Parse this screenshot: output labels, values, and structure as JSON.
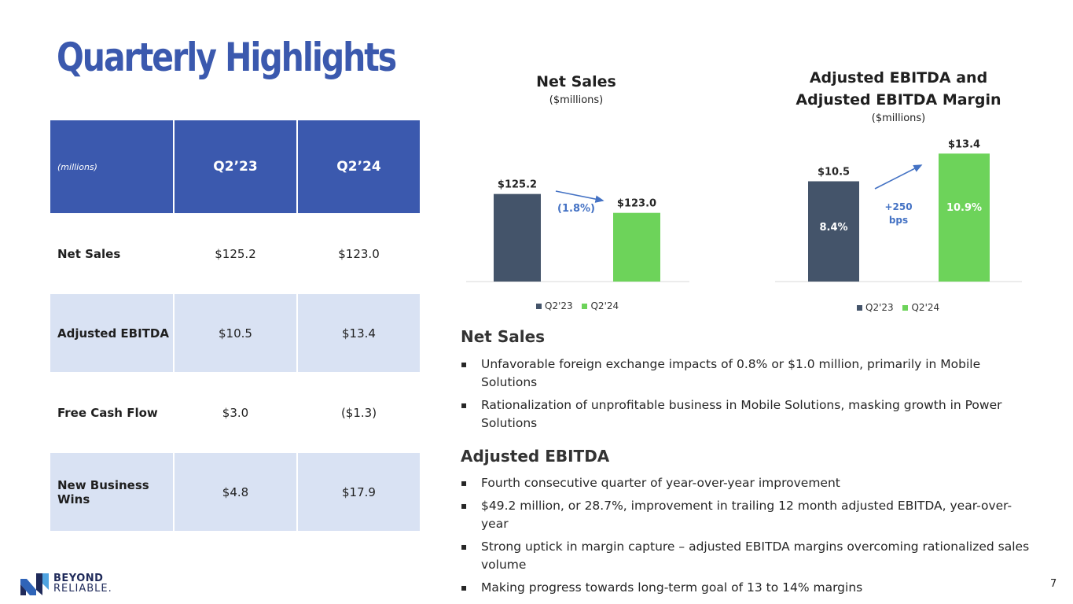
{
  "title": "Quarterly Highlights",
  "table": {
    "header": [
      "(millions)",
      "Q2’23",
      "Q2’24"
    ],
    "rows": [
      [
        "Net Sales",
        "$125.2",
        "$123.0"
      ],
      [
        "Adjusted EBITDA",
        "$10.5",
        "$13.4"
      ],
      [
        "Free Cash Flow",
        "$3.0",
        "($1.3)"
      ],
      [
        "New Business Wins",
        "$4.8",
        "$17.9"
      ]
    ]
  },
  "colors": {
    "brand": "#3b59ae",
    "q2_23": "#44546a",
    "q2_24": "#6dd35a",
    "table_alt": "#d9e2f3",
    "annotation": "#4472c4"
  },
  "chart_data": [
    {
      "type": "bar",
      "title": "Net Sales",
      "subtitle": "($millions)",
      "categories": [
        "Q2'23",
        "Q2'24"
      ],
      "values": [
        125.2,
        123.0
      ],
      "data_labels": [
        "$125.2",
        "$123.0"
      ],
      "annotation": "(1.8%)",
      "legend": [
        "Q2'23",
        "Q2'24"
      ],
      "ylim": [
        115,
        127
      ]
    },
    {
      "type": "bar",
      "title_lines": [
        "Adjusted EBITDA and",
        "Adjusted EBITDA Margin"
      ],
      "subtitle": "($millions)",
      "categories": [
        "Q2'23",
        "Q2'24"
      ],
      "values": [
        10.5,
        13.4
      ],
      "data_labels": [
        "$10.5",
        "$13.4"
      ],
      "margins": [
        "8.4%",
        "10.9%"
      ],
      "annotation_lines": [
        "+250",
        "bps"
      ],
      "legend": [
        "Q2'23",
        "Q2'24"
      ],
      "ylim": [
        0,
        14
      ]
    }
  ],
  "net_sales_section": {
    "heading": "Net Sales",
    "bullets": [
      "Unfavorable foreign exchange impacts of 0.8% or $1.0 million, primarily in Mobile Solutions",
      "Rationalization of unprofitable business in Mobile Solutions, masking growth in Power Solutions"
    ]
  },
  "ebitda_section": {
    "heading": "Adjusted EBITDA",
    "bullets": [
      "Fourth consecutive quarter of year-over-year improvement",
      "$49.2 million, or 28.7%, improvement in trailing 12 month adjusted EBITDA, year-over-year",
      "Strong uptick in margin capture – adjusted EBITDA margins overcoming rationalized sales volume",
      "Making progress towards long-term goal of 13 to 14% margins"
    ]
  },
  "logo": {
    "line1": "BEYOND",
    "line2": "RELIABLE."
  },
  "page_number": "7"
}
